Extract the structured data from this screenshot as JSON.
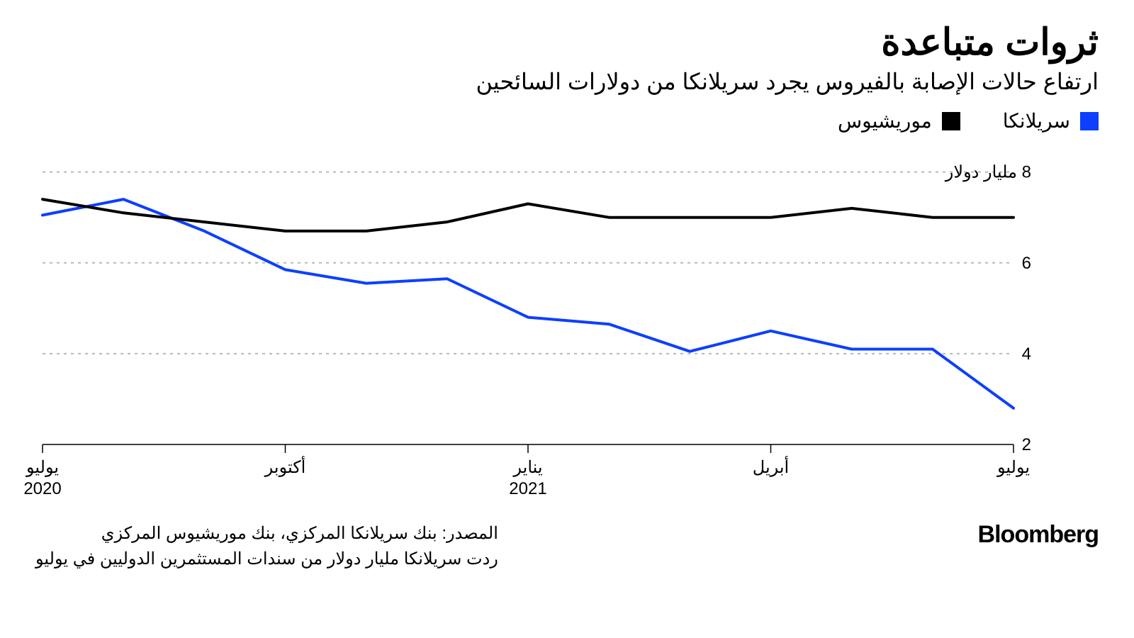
{
  "header": {
    "title": "ثروات متباعدة",
    "subtitle": "ارتفاع حالات الإصابة بالفيروس يجرد سريلانكا من دولارات السائحين"
  },
  "legend": {
    "items": [
      {
        "label": "سريلانكا",
        "color": "#0d3fff"
      },
      {
        "label": "موريشيوس",
        "color": "#000000"
      }
    ]
  },
  "chart": {
    "type": "line",
    "background_color": "#ffffff",
    "grid_color": "#b8b8b8",
    "grid_dash": "4 6",
    "axis_color": "#000000",
    "line_width": 4,
    "y": {
      "min": 2,
      "max": 8.4,
      "ticks": [
        {
          "value": 8,
          "label": "8 مليار دولار"
        },
        {
          "value": 6,
          "label": "6"
        },
        {
          "value": 4,
          "label": "4"
        },
        {
          "value": 2,
          "label": "2"
        }
      ],
      "label_fontsize": 24
    },
    "x": {
      "count": 13,
      "ticks": [
        {
          "index": 0,
          "line1": "يوليو",
          "line2": "2020"
        },
        {
          "index": 3,
          "line1": "أكتوبر",
          "line2": ""
        },
        {
          "index": 6,
          "line1": "يناير",
          "line2": "2021"
        },
        {
          "index": 9,
          "line1": "أبريل",
          "line2": ""
        },
        {
          "index": 12,
          "line1": "يوليو",
          "line2": ""
        }
      ],
      "label_fontsize": 24
    },
    "series": [
      {
        "name": "sri_lanka",
        "color": "#0d3fff",
        "values": [
          7.05,
          7.4,
          6.7,
          5.85,
          5.55,
          5.65,
          4.8,
          4.65,
          4.05,
          4.5,
          4.1,
          4.1,
          2.8
        ]
      },
      {
        "name": "mauritius",
        "color": "#000000",
        "values": [
          7.4,
          7.1,
          6.9,
          6.7,
          6.7,
          6.9,
          7.3,
          7.0,
          7.0,
          7.0,
          7.2,
          7.0,
          7.0
        ]
      }
    ]
  },
  "footer": {
    "source_line1": "المصدر: بنك سريلانكا المركزي، بنك موريشيوس المركزي",
    "source_line2": "ردت سريلانكا مليار دولار من سندات المستثمرين الدوليين في يوليو",
    "brand": "Bloomberg"
  }
}
